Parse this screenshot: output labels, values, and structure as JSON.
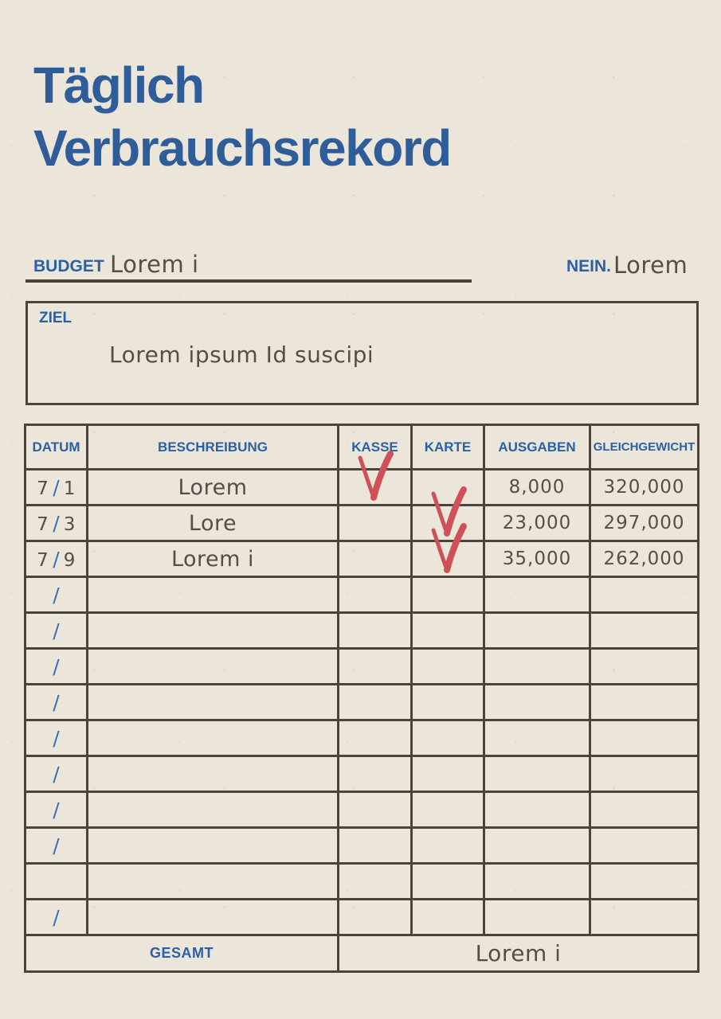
{
  "title": {
    "line1": "Täglich",
    "line2": "Verbrauchsrekord"
  },
  "budget": {
    "label": "BUDGET",
    "value": "Lorem i"
  },
  "nein": {
    "label": "NEIN.",
    "value": "Lorem"
  },
  "ziel": {
    "label": "ZIEL",
    "value": "Lorem ipsum Id suscipi"
  },
  "colors": {
    "paper": "#ece6da",
    "title_blue": "#2f5d99",
    "label_blue": "#2a60a6",
    "slash_blue": "#3a70b2",
    "handwriting": "#544e46",
    "grid_line": "#4a443b",
    "checkmark_red": "#d05058"
  },
  "table": {
    "headers": [
      "DATUM",
      "BESCHREIBUNG",
      "KASSE",
      "KARTE",
      "AUSGABEN",
      "GLEICHGEWICHT"
    ],
    "rows": [
      {
        "date_month": "7",
        "date_sep": "/",
        "date_day": "1",
        "beschreibung": "Lorem",
        "kasse": true,
        "karte": false,
        "ausgaben": "8,000",
        "gleichgewicht": "320,000"
      },
      {
        "date_month": "7",
        "date_sep": "/",
        "date_day": "3",
        "beschreibung": "Lore",
        "kasse": false,
        "karte": true,
        "ausgaben": "23,000",
        "gleichgewicht": "297,000"
      },
      {
        "date_month": "7",
        "date_sep": "/",
        "date_day": "9",
        "beschreibung": "Lorem i",
        "kasse": false,
        "karte": true,
        "ausgaben": "35,000",
        "gleichgewicht": "262,000"
      },
      {
        "date_month": "",
        "date_sep": "/",
        "date_day": "",
        "beschreibung": "",
        "kasse": false,
        "karte": false,
        "ausgaben": "",
        "gleichgewicht": ""
      },
      {
        "date_month": "",
        "date_sep": "/",
        "date_day": "",
        "beschreibung": "",
        "kasse": false,
        "karte": false,
        "ausgaben": "",
        "gleichgewicht": ""
      },
      {
        "date_month": "",
        "date_sep": "/",
        "date_day": "",
        "beschreibung": "",
        "kasse": false,
        "karte": false,
        "ausgaben": "",
        "gleichgewicht": ""
      },
      {
        "date_month": "",
        "date_sep": "/",
        "date_day": "",
        "beschreibung": "",
        "kasse": false,
        "karte": false,
        "ausgaben": "",
        "gleichgewicht": ""
      },
      {
        "date_month": "",
        "date_sep": "/",
        "date_day": "",
        "beschreibung": "",
        "kasse": false,
        "karte": false,
        "ausgaben": "",
        "gleichgewicht": ""
      },
      {
        "date_month": "",
        "date_sep": "/",
        "date_day": "",
        "beschreibung": "",
        "kasse": false,
        "karte": false,
        "ausgaben": "",
        "gleichgewicht": ""
      },
      {
        "date_month": "",
        "date_sep": "/",
        "date_day": "",
        "beschreibung": "",
        "kasse": false,
        "karte": false,
        "ausgaben": "",
        "gleichgewicht": ""
      },
      {
        "date_month": "",
        "date_sep": "/",
        "date_day": "",
        "beschreibung": "",
        "kasse": false,
        "karte": false,
        "ausgaben": "",
        "gleichgewicht": ""
      },
      {
        "date_month": "",
        "date_sep": "",
        "date_day": "",
        "beschreibung": "",
        "kasse": false,
        "karte": false,
        "ausgaben": "",
        "gleichgewicht": ""
      },
      {
        "date_month": "",
        "date_sep": "/",
        "date_day": "",
        "beschreibung": "",
        "kasse": false,
        "karte": false,
        "ausgaben": "",
        "gleichgewicht": ""
      }
    ],
    "footer": {
      "label": "GESAMT",
      "value": "Lorem i"
    }
  }
}
